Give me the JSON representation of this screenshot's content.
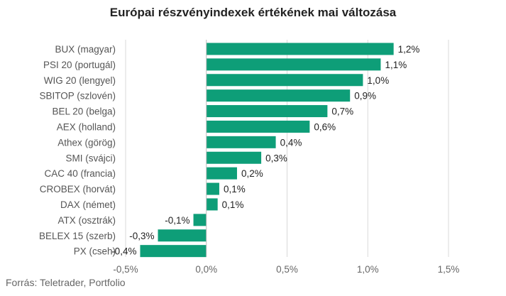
{
  "chart_data": {
    "type": "bar",
    "orientation": "horizontal",
    "title": "Európai részvényindexek értékének mai változása",
    "xlabel": "",
    "ylabel": "",
    "xlim": [
      -0.5,
      1.5
    ],
    "grid": true,
    "bar_color": "#0e9e78",
    "categories": [
      "BUX (magyar)",
      "PSI 20 (portugál)",
      "WIG 20 (lengyel)",
      "SBITOP (szlovén)",
      "BEL 20 (belga)",
      "AEX (holland)",
      "Athex (görög)",
      "SMI (svájci)",
      "CAC 40 (francia)",
      "CROBEX (horvát)",
      "DAX (német)",
      "ATX (osztrák)",
      "BELEX 15 (szerb)",
      "PX (cseh)"
    ],
    "values": [
      1.16,
      1.08,
      0.97,
      0.89,
      0.75,
      0.64,
      0.43,
      0.34,
      0.19,
      0.08,
      0.07,
      -0.08,
      -0.3,
      -0.41
    ],
    "data_labels": [
      "1,2%",
      "1,1%",
      "1,0%",
      "0,9%",
      "0,7%",
      "0,6%",
      "0,4%",
      "0,3%",
      "0,2%",
      "0,1%",
      "0,1%",
      "-0,1%",
      "-0,3%",
      "-0,4%"
    ],
    "x_ticks": [
      -0.5,
      0,
      0.5,
      1,
      1.5
    ],
    "x_tick_labels": [
      "-0,5%",
      "0,0%",
      "0,5%",
      "1,0%",
      "1,5%"
    ]
  },
  "footer": {
    "source": "Forrás: Teletrader, Portfolio"
  }
}
